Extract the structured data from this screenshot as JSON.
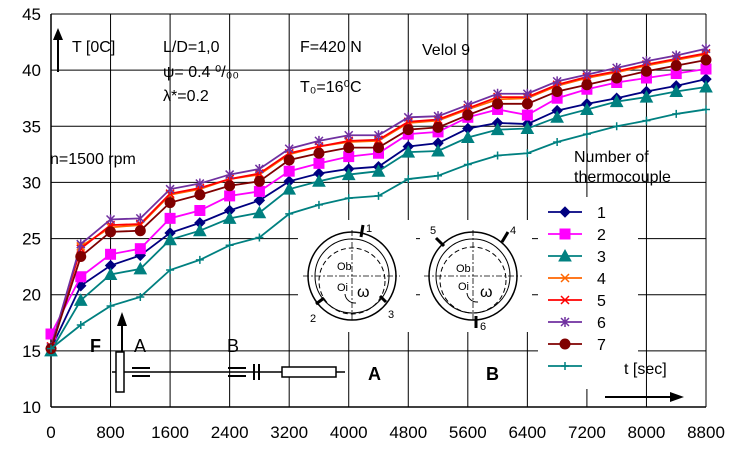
{
  "chart_data": {
    "type": "line",
    "xlabel": "t [sec]",
    "ylabel": "T [0C]",
    "xlim": [
      0,
      8800
    ],
    "ylim": [
      10,
      45
    ],
    "xticks": [
      "0",
      "800",
      "1600",
      "2400",
      "3200",
      "4000",
      "4800",
      "5600",
      "6400",
      "7200",
      "8000",
      "8800"
    ],
    "yticks": [
      "10",
      "15",
      "20",
      "25",
      "30",
      "35",
      "40",
      "45"
    ],
    "grid": true,
    "legend_title": "Number of thermocouple",
    "legend_position": "right",
    "x": [
      0,
      400,
      800,
      1200,
      1600,
      2000,
      2400,
      2800,
      3200,
      3600,
      4000,
      4400,
      4800,
      5200,
      5600,
      6000,
      6400,
      6800,
      7200,
      7600,
      8000,
      8400,
      8800
    ],
    "series": [
      {
        "name": "1",
        "color": "#000080",
        "marker": "diamond",
        "values": [
          15.2,
          20.8,
          22.6,
          23.5,
          25.5,
          26.4,
          27.5,
          28.4,
          30.1,
          30.8,
          31.2,
          31.4,
          33.2,
          33.5,
          34.8,
          35.3,
          35.2,
          36.4,
          37.0,
          37.5,
          38.1,
          38.6,
          39.2
        ]
      },
      {
        "name": "2",
        "color": "#ff00ff",
        "marker": "square",
        "values": [
          16.5,
          21.6,
          23.6,
          24.1,
          26.8,
          27.5,
          28.8,
          29.2,
          31.0,
          31.7,
          32.3,
          32.6,
          34.3,
          34.5,
          35.8,
          36.5,
          36.0,
          37.5,
          38.3,
          38.9,
          39.3,
          39.7,
          40.1
        ]
      },
      {
        "name": "3",
        "color": "#008080",
        "marker": "triangle",
        "values": [
          15.0,
          19.5,
          21.8,
          22.3,
          24.9,
          25.7,
          26.8,
          27.3,
          29.4,
          30.1,
          30.7,
          31.0,
          32.7,
          32.8,
          34.0,
          34.7,
          34.8,
          35.8,
          36.5,
          37.2,
          37.6,
          38.1,
          38.5
        ]
      },
      {
        "name": "4",
        "color": "#ff6600",
        "marker": "x",
        "values": [
          15.3,
          24.3,
          26.0,
          26.2,
          28.9,
          29.4,
          30.3,
          30.7,
          32.5,
          33.2,
          33.6,
          33.7,
          35.3,
          35.5,
          36.5,
          37.4,
          37.5,
          38.6,
          39.3,
          39.8,
          40.4,
          40.9,
          41.4
        ]
      },
      {
        "name": "5",
        "color": "#ff0000",
        "marker": "x",
        "values": [
          15.4,
          24.1,
          26.2,
          26.3,
          29.0,
          29.5,
          30.3,
          30.8,
          32.6,
          33.2,
          33.7,
          33.8,
          35.4,
          35.6,
          36.6,
          37.6,
          37.6,
          38.7,
          39.4,
          39.9,
          40.5,
          41.0,
          41.5
        ]
      },
      {
        "name": "6",
        "color": "#7030a0",
        "marker": "star",
        "values": [
          15.3,
          24.5,
          26.7,
          26.8,
          29.4,
          29.9,
          30.7,
          31.2,
          33.0,
          33.7,
          34.2,
          34.2,
          35.8,
          35.9,
          36.9,
          37.9,
          37.9,
          39.0,
          39.6,
          40.2,
          40.8,
          41.3,
          41.9
        ]
      },
      {
        "name": "7",
        "color": "#800000",
        "marker": "circle",
        "values": [
          15.2,
          23.4,
          25.6,
          25.7,
          28.2,
          28.9,
          29.7,
          30.1,
          32.0,
          32.6,
          33.1,
          33.1,
          34.7,
          34.9,
          36.0,
          37.0,
          37.0,
          38.1,
          38.7,
          39.3,
          39.9,
          40.4,
          40.9
        ]
      },
      {
        "name": "",
        "color": "#008080",
        "marker": "plus",
        "values": [
          15.2,
          17.3,
          19.0,
          19.8,
          22.2,
          23.1,
          24.4,
          25.1,
          27.2,
          28.0,
          28.6,
          28.8,
          30.3,
          30.6,
          31.6,
          32.4,
          32.6,
          33.6,
          34.3,
          35.0,
          35.5,
          36.1,
          36.5
        ]
      }
    ],
    "annotations": {
      "ld": "L/D=1,0",
      "psi": "ψ= 0.4 ⁰/₀₀",
      "lambda": "λ*=0.2",
      "force": "F=420 N",
      "t0": "T₀=16⁰C",
      "oil": "Velol 9",
      "speed": "n=1500 rpm"
    },
    "schematic": {
      "f": "F",
      "a": "A",
      "b": "B",
      "sec_a": "A",
      "sec_b": "B",
      "ob": "Ob",
      "oi": "Oi",
      "omega": "ω",
      "a_tc": [
        "1",
        "2",
        "3"
      ],
      "b_tc": [
        "4",
        "5",
        "6"
      ]
    }
  }
}
